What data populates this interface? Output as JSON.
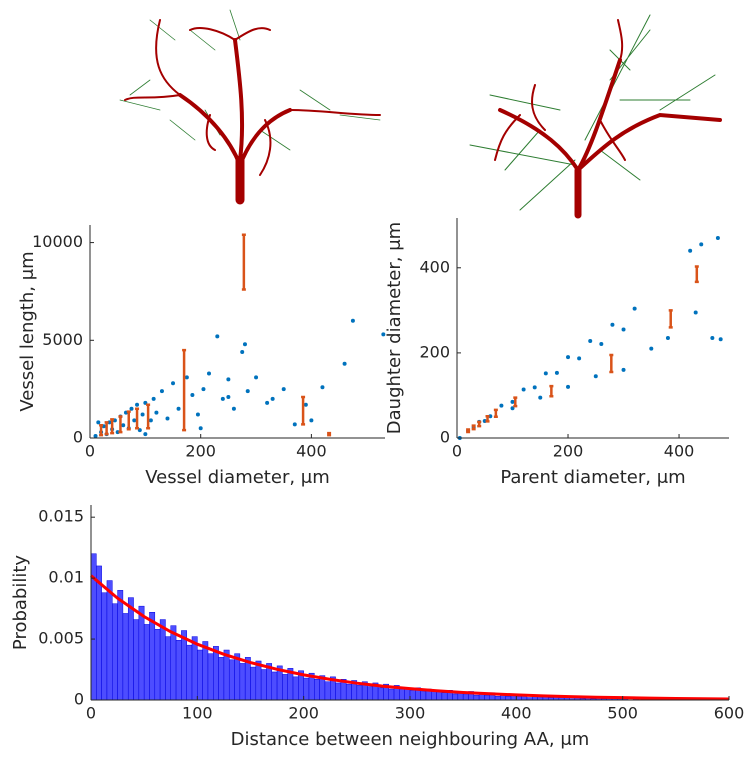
{
  "chart_data": [
    {
      "type": "scatter",
      "xlabel": "Vessel diameter, μm",
      "ylabel": "Vessel length, μm",
      "xlim": [
        0,
        533
      ],
      "ylim": [
        0,
        10900
      ],
      "xticks": [
        0,
        200,
        400
      ],
      "yticks": [
        0,
        5000,
        10000
      ],
      "color": "#0072bd",
      "x": [
        20,
        25,
        30,
        35,
        40,
        45,
        50,
        55,
        60,
        65,
        70,
        75,
        80,
        85,
        90,
        95,
        100,
        110,
        115,
        120,
        130,
        140,
        150,
        160,
        175,
        185,
        195,
        205,
        215,
        230,
        240,
        250,
        260,
        275,
        285,
        300,
        320,
        330,
        350,
        370,
        390,
        400,
        420,
        460,
        475,
        530,
        10,
        15,
        100,
        200,
        280,
        250
      ],
      "y": [
        300,
        600,
        200,
        800,
        450,
        900,
        300,
        1100,
        650,
        1300,
        500,
        1500,
        900,
        1700,
        400,
        1200,
        1800,
        900,
        2000,
        1300,
        2400,
        1000,
        2800,
        1500,
        3100,
        2200,
        1200,
        2500,
        3300,
        5200,
        2000,
        3000,
        1500,
        4400,
        2400,
        3100,
        1800,
        2000,
        2500,
        700,
        1700,
        900,
        2600,
        3800,
        6000,
        5300,
        100,
        800,
        200,
        500,
        4800,
        2100
      ],
      "errorbars": {
        "color": "#d95319",
        "x": [
          20,
          30,
          40,
          55,
          70,
          85,
          105,
          170,
          278,
          385,
          432
        ],
        "values": [
          400,
          500,
          600,
          700,
          900,
          1000,
          1100,
          2450,
          9000,
          1400,
          200
        ],
        "errors": [
          250,
          300,
          350,
          400,
          450,
          500,
          600,
          2050,
          1400,
          700,
          50
        ]
      }
    },
    {
      "type": "scatter",
      "xlabel": "Parent diameter, μm",
      "ylabel": "Daughter diameter, μm",
      "xlim": [
        0,
        490
      ],
      "ylim": [
        0,
        517
      ],
      "xticks": [
        0,
        200,
        400
      ],
      "yticks": [
        0,
        200,
        400
      ],
      "color": "#0072bd",
      "x": [
        5,
        20,
        30,
        40,
        80,
        120,
        160,
        200,
        240,
        280,
        320,
        420,
        440,
        470,
        60,
        100,
        140,
        180,
        220,
        260,
        300,
        50,
        100,
        150,
        200,
        250,
        300,
        350,
        380,
        430,
        460,
        475
      ],
      "y": [
        0,
        17,
        25,
        38,
        76,
        114,
        152,
        190,
        228,
        266,
        304,
        440,
        455,
        470,
        51,
        85,
        119,
        153,
        187,
        221,
        255,
        40,
        70,
        95,
        120,
        145,
        160,
        210,
        235,
        295,
        235,
        232
      ],
      "errorbars": {
        "color": "#d95319",
        "x": [
          20,
          30,
          40,
          55,
          70,
          105,
          170,
          278,
          385,
          432
        ],
        "values": [
          17,
          25,
          33,
          45,
          58,
          85,
          110,
          175,
          280,
          385
        ],
        "errors": [
          3,
          4,
          5,
          6,
          8,
          10,
          12,
          20,
          20,
          18
        ]
      }
    },
    {
      "type": "histogram",
      "xlabel": "Distance between neighbouring AA, μm",
      "ylabel": "Probability",
      "xlim": [
        0,
        600
      ],
      "ylim": [
        0,
        0.016
      ],
      "xticks": [
        0,
        100,
        200,
        300,
        400,
        500,
        600
      ],
      "yticks": [
        0,
        0.005,
        0.01,
        0.015
      ],
      "color": "#4d4dff",
      "bins": [
        0,
        5,
        10,
        15,
        20,
        25,
        30,
        35,
        40,
        45,
        50,
        55,
        60,
        65,
        70,
        75,
        80,
        85,
        90,
        95,
        100,
        105,
        110,
        115,
        120,
        125,
        130,
        135,
        140,
        145,
        150,
        155,
        160,
        165,
        170,
        175,
        180,
        185,
        190,
        195,
        200,
        205,
        210,
        215,
        220,
        225,
        230,
        235,
        240,
        245,
        250,
        255,
        260,
        265,
        270,
        275,
        280,
        285,
        290,
        295,
        300,
        305,
        310,
        315,
        320,
        325,
        330,
        335,
        340,
        345,
        350,
        355,
        360,
        365,
        370,
        375,
        380,
        385,
        390,
        395,
        400,
        405,
        410,
        415,
        420,
        425,
        430,
        435,
        440,
        445,
        450,
        455,
        460,
        465,
        470,
        475,
        480,
        485,
        490,
        495,
        500,
        505,
        510,
        515,
        520,
        525,
        530,
        535,
        540,
        545,
        550,
        555,
        560,
        565,
        570,
        575,
        580,
        585,
        590,
        595,
        600
      ],
      "values": [
        0.012,
        0.011,
        0.0088,
        0.0098,
        0.0079,
        0.009,
        0.0071,
        0.0084,
        0.0066,
        0.0077,
        0.0062,
        0.0072,
        0.0058,
        0.0066,
        0.0052,
        0.0061,
        0.0049,
        0.0057,
        0.0045,
        0.0052,
        0.0041,
        0.0048,
        0.0038,
        0.0044,
        0.0035,
        0.0041,
        0.0033,
        0.0038,
        0.003,
        0.0035,
        0.0027,
        0.0032,
        0.0025,
        0.003,
        0.0023,
        0.0028,
        0.0021,
        0.0026,
        0.0019,
        0.0024,
        0.0018,
        0.0022,
        0.0017,
        0.002,
        0.0015,
        0.0019,
        0.0014,
        0.0017,
        0.0013,
        0.0016,
        0.0012,
        0.0015,
        0.0011,
        0.0014,
        0.001,
        0.0013,
        0.0009,
        0.0012,
        0.0009,
        0.001,
        0.0008,
        0.001,
        0.0007,
        0.0009,
        0.0007,
        0.0008,
        0.0006,
        0.0008,
        0.0005,
        0.0007,
        0.0005,
        0.0007,
        0.0004,
        0.0006,
        0.0004,
        0.0006,
        0.0003,
        0.0005,
        0.0003,
        0.0005,
        0.0003,
        0.0004,
        0.0002,
        0.0004,
        0.0002,
        0.0003,
        0.0002,
        0.0003,
        0.0002,
        0.0002,
        0.0001,
        0.0003,
        0.0001,
        0.0002,
        0.0001,
        0.0002,
        0.0001,
        0.0002,
        0.0001,
        0.0001,
        0.0001,
        0,
        0.0001,
        0,
        0,
        0.0001,
        0,
        0.0002,
        0,
        0,
        0,
        0,
        0,
        0,
        0,
        0,
        0,
        0,
        0,
        0
      ],
      "fit": {
        "color": "#ff0000",
        "x": [
          0,
          25,
          50,
          75,
          100,
          125,
          150,
          175,
          200,
          225,
          250,
          275,
          300,
          325,
          350,
          375,
          400,
          425,
          450,
          475,
          500,
          525,
          550,
          575,
          600
        ],
        "values": [
          0.0102,
          0.00835,
          0.00684,
          0.0056,
          0.00458,
          0.00375,
          0.00307,
          0.00252,
          0.00206,
          0.00169,
          0.00138,
          0.00113,
          0.00093,
          0.00076,
          0.00062,
          0.00051,
          0.00042,
          0.00034,
          0.00028,
          0.00023,
          0.00019,
          0.00015,
          0.00012,
          0.0001,
          8e-05
        ]
      }
    }
  ]
}
